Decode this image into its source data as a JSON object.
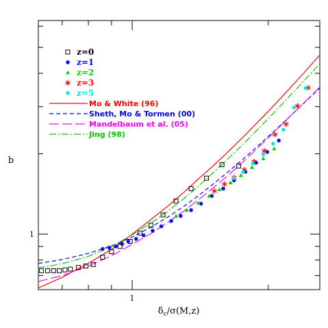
{
  "chart_data": {
    "type": "scatter",
    "xlabel": "δ_c/σ(M,z)",
    "ylabel": "b",
    "x_scale": "log",
    "y_scale": "log",
    "xlim": [
      0.62,
      2.6
    ],
    "ylim": [
      0.62,
      6.3
    ],
    "x_ticks": [
      {
        "value": 1,
        "label": "1"
      }
    ],
    "y_ticks": [
      {
        "value": 1,
        "label": "1"
      }
    ],
    "grid": false,
    "legend_position": "top-left",
    "series": [
      {
        "name": "z=0",
        "kind": "points",
        "marker": "open-square",
        "color": "#000000",
        "x": [
          0.63,
          0.65,
          0.67,
          0.69,
          0.71,
          0.73,
          0.76,
          0.79,
          0.82,
          0.86,
          0.9,
          0.94,
          0.99,
          1.04,
          1.1,
          1.17,
          1.25,
          1.35,
          1.46,
          1.58,
          1.72
        ],
        "y": [
          0.73,
          0.73,
          0.73,
          0.73,
          0.735,
          0.74,
          0.75,
          0.76,
          0.77,
          0.82,
          0.86,
          0.9,
          0.94,
          1.01,
          1.08,
          1.18,
          1.33,
          1.48,
          1.62,
          1.82,
          1.8
        ]
      },
      {
        "name": "z=1",
        "kind": "points",
        "marker": "asterisk",
        "color": "#0000ff",
        "x": [
          0.86,
          0.89,
          0.92,
          0.95,
          0.98,
          1.02,
          1.06,
          1.11,
          1.16,
          1.22,
          1.28,
          1.35,
          1.42,
          1.5,
          1.59,
          1.68,
          1.78,
          1.88,
          1.99,
          2.11
        ],
        "y": [
          0.88,
          0.89,
          0.9,
          0.92,
          0.94,
          0.96,
          0.99,
          1.03,
          1.07,
          1.12,
          1.17,
          1.23,
          1.3,
          1.39,
          1.48,
          1.59,
          1.71,
          1.85,
          2.03,
          2.24
        ]
      },
      {
        "name": "z=2",
        "kind": "points",
        "marker": "triangle",
        "color": "#00cc00",
        "x": [
          1.25,
          1.32,
          1.4,
          1.48,
          1.56,
          1.65,
          1.74,
          1.84,
          1.95,
          2.06
        ],
        "y": [
          1.17,
          1.23,
          1.31,
          1.39,
          1.47,
          1.56,
          1.66,
          1.78,
          1.92,
          2.09
        ]
      },
      {
        "name": "z=3",
        "kind": "points",
        "marker": "star",
        "color": "#ff0000",
        "x": [
          1.52,
          1.6,
          1.68,
          1.77,
          1.86,
          1.96,
          2.07,
          2.19,
          2.32,
          2.45
        ],
        "y": [
          1.45,
          1.54,
          1.63,
          1.74,
          1.87,
          2.05,
          2.36,
          2.58,
          3.02,
          3.53
        ]
      },
      {
        "name": "z=5",
        "kind": "points",
        "marker": "dot",
        "color": "#00e5e5",
        "x": [
          1.68,
          1.76,
          1.85,
          1.95,
          2.05,
          2.16,
          2.28,
          2.42
        ],
        "y": [
          1.62,
          1.71,
          1.84,
          1.99,
          2.18,
          2.46,
          2.98,
          3.52
        ]
      },
      {
        "name": "Mo & White (96)",
        "kind": "line",
        "dash": "solid",
        "color": "#ff0000",
        "x": [
          0.62,
          0.7,
          0.8,
          0.9,
          1.0,
          1.1,
          1.2,
          1.3,
          1.4,
          1.5,
          1.6,
          1.7,
          1.8,
          1.9,
          2.0,
          2.1,
          2.2,
          2.3,
          2.4,
          2.5,
          2.6
        ],
        "y": [
          0.629,
          0.69,
          0.778,
          0.877,
          1.0,
          1.135,
          1.275,
          1.432,
          1.608,
          1.783,
          1.974,
          2.181,
          2.4,
          2.637,
          2.88,
          3.144,
          3.423,
          3.714,
          4.022,
          4.348,
          4.68
        ]
      },
      {
        "name": "Sheth, Mo & Tormen (00)",
        "kind": "line",
        "dash": "dashed",
        "color": "#0000ff",
        "x": [
          0.62,
          0.7,
          0.8,
          0.9,
          1.0,
          1.1,
          1.2,
          1.3,
          1.4,
          1.5,
          1.6,
          1.7,
          1.8,
          1.9,
          2.0,
          2.1,
          2.2,
          2.3,
          2.4,
          2.5,
          2.6
        ],
        "y": [
          0.777,
          0.804,
          0.847,
          0.904,
          0.976,
          1.062,
          1.16,
          1.27,
          1.392,
          1.525,
          1.667,
          1.817,
          1.976,
          2.144,
          2.32,
          2.504,
          2.695,
          2.893,
          3.097,
          3.307,
          3.524
        ]
      },
      {
        "name": "Mandelbaum et al. (05)",
        "kind": "line",
        "dash": "long-dash",
        "color": "#ff00ff",
        "x": [
          0.62,
          0.7,
          0.8,
          0.9,
          1.0,
          1.1,
          1.2,
          1.3,
          1.4,
          1.5,
          1.6,
          1.7,
          1.8,
          1.9,
          2.0,
          2.1,
          2.2,
          2.3,
          2.4,
          2.5,
          2.6
        ],
        "y": [
          0.665,
          0.7,
          0.76,
          0.831,
          0.916,
          1.005,
          1.108,
          1.22,
          1.342,
          1.477,
          1.616,
          1.771,
          1.934,
          2.111,
          2.294,
          2.487,
          2.689,
          2.893,
          3.104,
          3.324,
          3.55
        ]
      },
      {
        "name": "Jing (98)",
        "kind": "line",
        "dash": "dash-dot",
        "color": "#00cc00",
        "x": [
          0.62,
          0.7,
          0.8,
          0.9,
          1.0,
          1.1,
          1.2,
          1.3,
          1.4,
          1.5,
          1.6,
          1.7,
          1.8,
          1.9,
          2.0,
          2.1,
          2.2,
          2.3,
          2.4,
          2.5,
          2.6
        ],
        "y": [
          0.748,
          0.775,
          0.826,
          0.898,
          0.994,
          1.1,
          1.219,
          1.357,
          1.511,
          1.679,
          1.859,
          2.052,
          2.258,
          2.477,
          2.708,
          2.952,
          3.207,
          3.474,
          3.753,
          4.044,
          4.346
        ]
      }
    ]
  },
  "colors": {
    "frame": "#000000",
    "background": "#ffffff"
  }
}
